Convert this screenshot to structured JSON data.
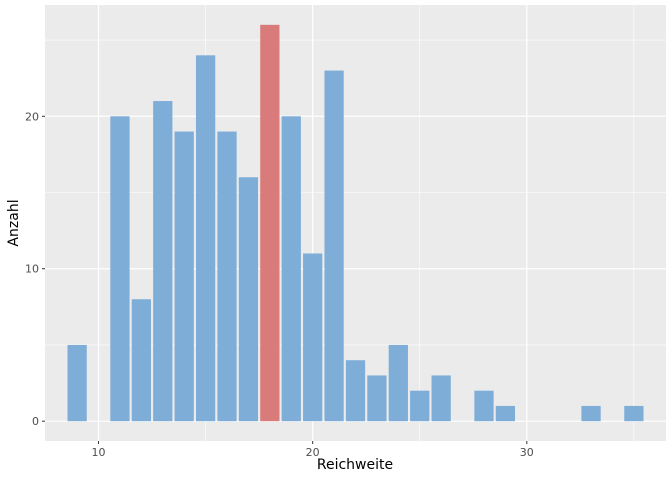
{
  "chart_data": {
    "type": "bar",
    "xlabel": "Reichweite",
    "ylabel": "Anzahl",
    "xlim": [
      7.5,
      36.5
    ],
    "ylim": [
      -1.3,
      27.3
    ],
    "x_ticks": [
      10,
      20,
      30
    ],
    "y_ticks": [
      0,
      10,
      20
    ],
    "grid": true,
    "colors": {
      "panel_background": "#ebebeb",
      "grid": "#ffffff",
      "bar_default": "#7eaed8",
      "bar_highlight": "#d97b7b"
    },
    "bars": [
      {
        "x": 9,
        "count": 5,
        "highlight": false
      },
      {
        "x": 11,
        "count": 20,
        "highlight": false
      },
      {
        "x": 12,
        "count": 8,
        "highlight": false
      },
      {
        "x": 13,
        "count": 21,
        "highlight": false
      },
      {
        "x": 14,
        "count": 19,
        "highlight": false
      },
      {
        "x": 15,
        "count": 24,
        "highlight": false
      },
      {
        "x": 16,
        "count": 19,
        "highlight": false
      },
      {
        "x": 17,
        "count": 16,
        "highlight": false
      },
      {
        "x": 18,
        "count": 26,
        "highlight": true
      },
      {
        "x": 19,
        "count": 20,
        "highlight": false
      },
      {
        "x": 20,
        "count": 11,
        "highlight": false
      },
      {
        "x": 21,
        "count": 23,
        "highlight": false
      },
      {
        "x": 22,
        "count": 4,
        "highlight": false
      },
      {
        "x": 23,
        "count": 3,
        "highlight": false
      },
      {
        "x": 24,
        "count": 5,
        "highlight": false
      },
      {
        "x": 25,
        "count": 2,
        "highlight": false
      },
      {
        "x": 26,
        "count": 3,
        "highlight": false
      },
      {
        "x": 28,
        "count": 2,
        "highlight": false
      },
      {
        "x": 29,
        "count": 1,
        "highlight": false
      },
      {
        "x": 33,
        "count": 1,
        "highlight": false
      },
      {
        "x": 35,
        "count": 1,
        "highlight": false
      }
    ]
  }
}
